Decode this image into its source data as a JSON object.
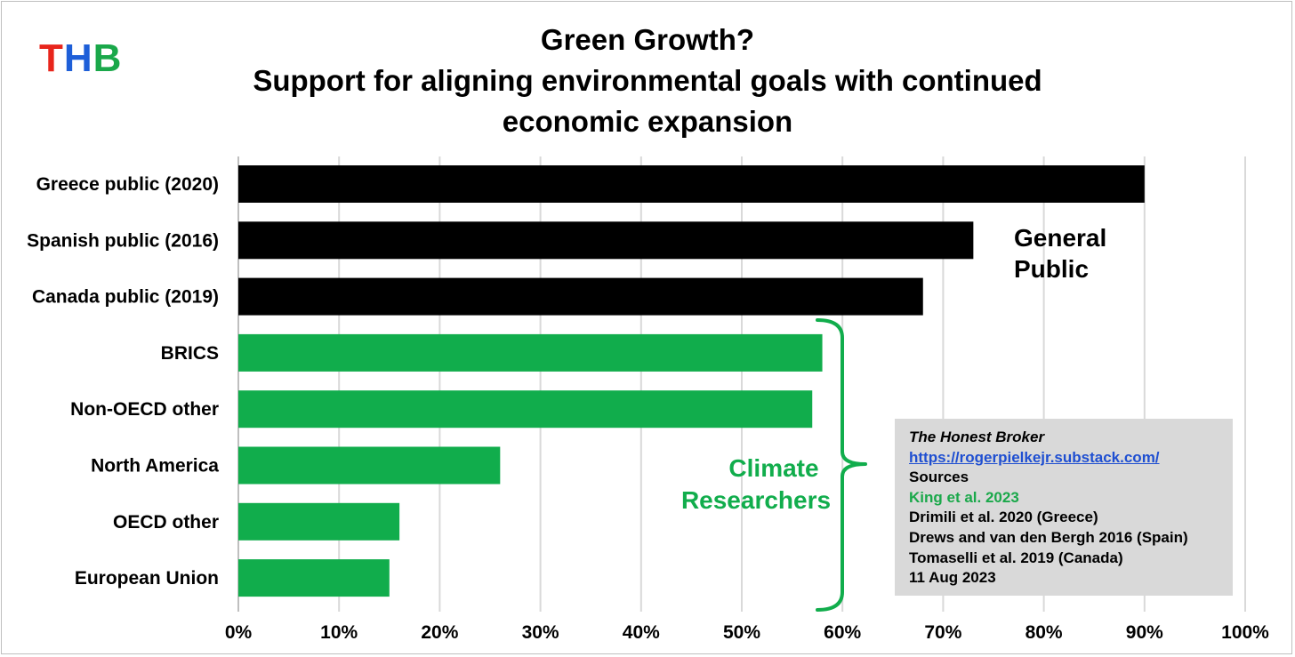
{
  "logo": {
    "letters": [
      "T",
      "H",
      "B"
    ],
    "colors": [
      "#e8251c",
      "#1e5fd8",
      "#1aa84a"
    ]
  },
  "title": {
    "line1": "Green Growth?",
    "line2": "Support for aligning environmental goals with continued economic expansion"
  },
  "colors": {
    "public": "#000000",
    "researchers": "#11ad4c",
    "grid": "#d9d9d9"
  },
  "chart_data": {
    "type": "bar",
    "orientation": "horizontal",
    "title": "Green Growth? Support for aligning environmental goals with continued economic expansion",
    "categories": [
      "Greece public (2020)",
      "Spanish public (2016)",
      "Canada public (2019)",
      "BRICS",
      "Non-OECD other",
      "North America",
      "OECD other",
      "European Union"
    ],
    "values": [
      90,
      73,
      68,
      58,
      57,
      26,
      16,
      15
    ],
    "groups": [
      "General Public",
      "General Public",
      "General Public",
      "Climate Researchers",
      "Climate Researchers",
      "Climate Researchers",
      "Climate Researchers",
      "Climate Researchers"
    ],
    "xlim": [
      0,
      100
    ],
    "xticks": [
      "0%",
      "10%",
      "20%",
      "30%",
      "40%",
      "50%",
      "60%",
      "70%",
      "80%",
      "90%",
      "100%"
    ],
    "grid": true,
    "annotations": {
      "general_public": [
        "General",
        "Public"
      ],
      "climate_researchers": [
        "Climate",
        "Researchers"
      ]
    }
  },
  "sources": {
    "line1": "The Honest Broker",
    "link": "https://rogerpielkejr.substack.com/",
    "header": "Sources",
    "s1": "King et al. 2023",
    "s2": "Drimili et al. 2020 (Greece)",
    "s3": "Drews and van den Bergh 2016 (Spain)",
    "s4": "Tomaselli et al. 2019 (Canada)",
    "date": "11 Aug 2023"
  }
}
